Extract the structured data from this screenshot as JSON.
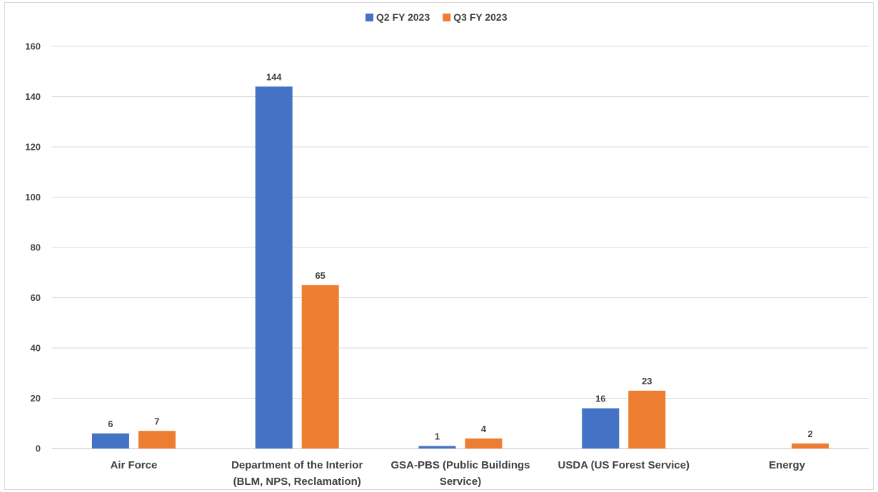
{
  "chart_data": {
    "type": "bar",
    "title": "",
    "xlabel": "",
    "ylabel": "",
    "ylim": [
      0,
      160
    ],
    "yticks": [
      0,
      20,
      40,
      60,
      80,
      100,
      120,
      140,
      160
    ],
    "grid": true,
    "legend_position": "top-center",
    "categories": [
      [
        "Air Force"
      ],
      [
        "Department of the Interior",
        "(BLM, NPS, Reclamation)"
      ],
      [
        "GSA-PBS (Public Buildings",
        "Service)"
      ],
      [
        "USDA (US Forest Service)"
      ],
      [
        "Energy"
      ]
    ],
    "series": [
      {
        "name": "Q2 FY 2023",
        "color": "#4472c4",
        "values": [
          6,
          144,
          1,
          16,
          null
        ]
      },
      {
        "name": "Q3 FY 2023",
        "color": "#ed7d31",
        "values": [
          7,
          65,
          4,
          23,
          2
        ]
      }
    ]
  }
}
